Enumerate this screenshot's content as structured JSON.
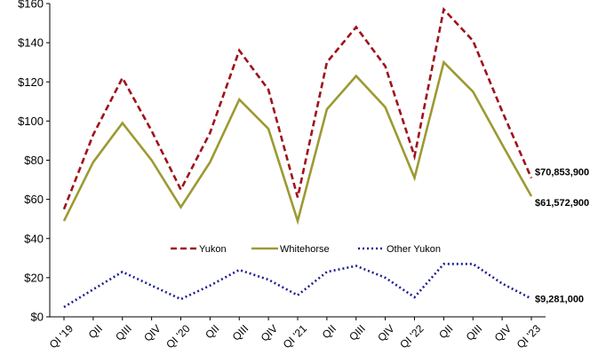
{
  "chart_data": {
    "type": "line",
    "title": "",
    "xlabel": "",
    "ylabel": "",
    "categories": [
      "QI '19",
      "QII",
      "QIII",
      "QIV",
      "QI '20",
      "QII",
      "QIII",
      "QIV",
      "QI '21",
      "QII",
      "QIII",
      "QIV",
      "QI '22",
      "QII",
      "QIII",
      "QIV",
      "QI '23"
    ],
    "y_tick_labels": [
      "$0",
      "$20",
      "$40",
      "$60",
      "$80",
      "$100",
      "$120",
      "$140",
      "$160"
    ],
    "ylim": [
      0,
      160
    ],
    "grid": false,
    "legend_position": "center",
    "series": [
      {
        "name": "Yukon",
        "color": "#A0121C",
        "line_style": "dashed",
        "values": [
          55,
          93,
          122,
          95,
          65,
          94,
          136,
          116,
          61,
          130,
          148,
          128,
          82,
          157,
          141,
          105,
          70.9
        ],
        "end_label": "$70,853,900"
      },
      {
        "name": "Whitehorse",
        "color": "#9C9A32",
        "line_style": "solid",
        "values": [
          49,
          79,
          99,
          80,
          56,
          79,
          111,
          96,
          49,
          106,
          123,
          107,
          71,
          130,
          115,
          88,
          61.6
        ],
        "end_label": "$61,572,900"
      },
      {
        "name": "Other Yukon",
        "color": "#1F1F8F",
        "line_style": "dotted",
        "values": [
          5,
          14,
          23,
          16,
          9,
          16,
          24,
          19,
          11,
          23,
          26,
          20,
          10,
          27,
          27,
          17,
          9.3
        ],
        "end_label": "$9,281,000"
      }
    ]
  }
}
